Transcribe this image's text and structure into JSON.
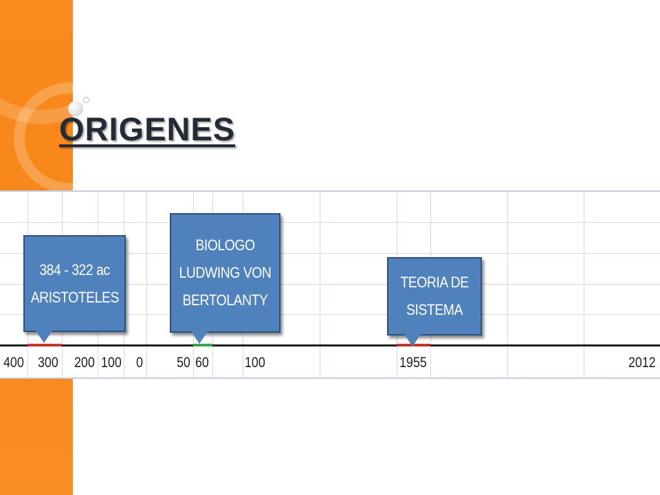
{
  "slide": {
    "title": "ORIGENES"
  },
  "timeline": {
    "callouts": [
      {
        "lines": [
          "384 - 322 ac",
          "ARISTOTELES"
        ]
      },
      {
        "lines": [
          "BIOLOGO",
          "LUDWING VON",
          "BERTOLANTY"
        ]
      },
      {
        "lines": [
          "TEORIA DE",
          "SISTEMA"
        ]
      }
    ],
    "ticks": [
      "400",
      "300",
      "200",
      "100",
      "0",
      "50",
      "60",
      "100",
      "1955",
      "2012"
    ],
    "colors": {
      "callout_fill": "#4f81bd",
      "callout_border": "#2b4f7e",
      "segment_red": "#c0392b",
      "segment_green": "#3aa84a",
      "accent_orange": "#f7861b"
    }
  }
}
